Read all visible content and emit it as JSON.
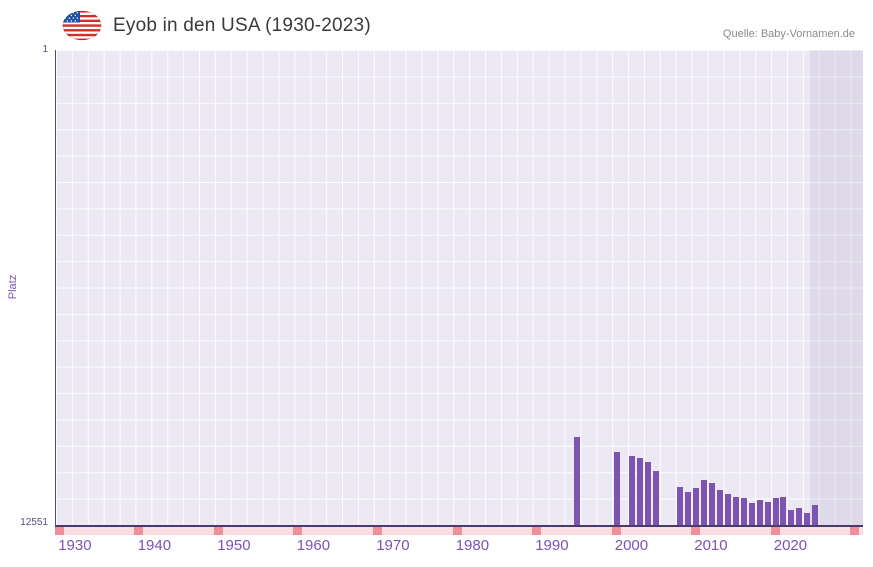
{
  "header": {
    "title": "Eyob in den USA (1930-2023)",
    "source": "Quelle: Baby-Vornamen.de",
    "flag_icon": "us-flag"
  },
  "chart_data": {
    "type": "bar",
    "title": "Eyob in den USA (1930-2023)",
    "ylabel": "Platz",
    "y_axis": {
      "top_label": "1",
      "bottom_label": "12551",
      "min": 1,
      "max": 12551,
      "inverted": true
    },
    "x_range": [
      1927.5,
      2029
    ],
    "x_ticks": [
      1930,
      1940,
      1950,
      1960,
      1970,
      1980,
      1990,
      2000,
      2010,
      2020
    ],
    "bar_color": "#7d54b0",
    "plot_bg": "#ece9f5",
    "grid": true,
    "legend": "none",
    "shaded_region": {
      "from_year": 2022.3,
      "color": "rgba(99,86,140,0.10)"
    },
    "missing_strip": {
      "color": "#fadde2",
      "mark_color": "#ee8f99",
      "mark_years": [
        1928,
        1938,
        1948,
        1958,
        1968,
        1978,
        1988,
        1998,
        2008,
        2018,
        2028
      ]
    },
    "points": [
      {
        "year": 1993,
        "rank": 10230
      },
      {
        "year": 1998,
        "rank": 10620
      },
      {
        "year": 2000,
        "rank": 10730
      },
      {
        "year": 2001,
        "rank": 10790
      },
      {
        "year": 2002,
        "rank": 10880
      },
      {
        "year": 2003,
        "rank": 11120
      },
      {
        "year": 2006,
        "rank": 11540
      },
      {
        "year": 2007,
        "rank": 11670
      },
      {
        "year": 2008,
        "rank": 11560
      },
      {
        "year": 2009,
        "rank": 11360
      },
      {
        "year": 2010,
        "rank": 11430
      },
      {
        "year": 2011,
        "rank": 11620
      },
      {
        "year": 2012,
        "rank": 11740
      },
      {
        "year": 2013,
        "rank": 11800
      },
      {
        "year": 2014,
        "rank": 11850
      },
      {
        "year": 2015,
        "rank": 11960
      },
      {
        "year": 2016,
        "rank": 11900
      },
      {
        "year": 2017,
        "rank": 11930
      },
      {
        "year": 2018,
        "rank": 11840
      },
      {
        "year": 2019,
        "rank": 11820
      },
      {
        "year": 2020,
        "rank": 12150
      },
      {
        "year": 2021,
        "rank": 12110
      },
      {
        "year": 2022,
        "rank": 12230
      },
      {
        "year": 2023,
        "rank": 12020
      }
    ]
  }
}
